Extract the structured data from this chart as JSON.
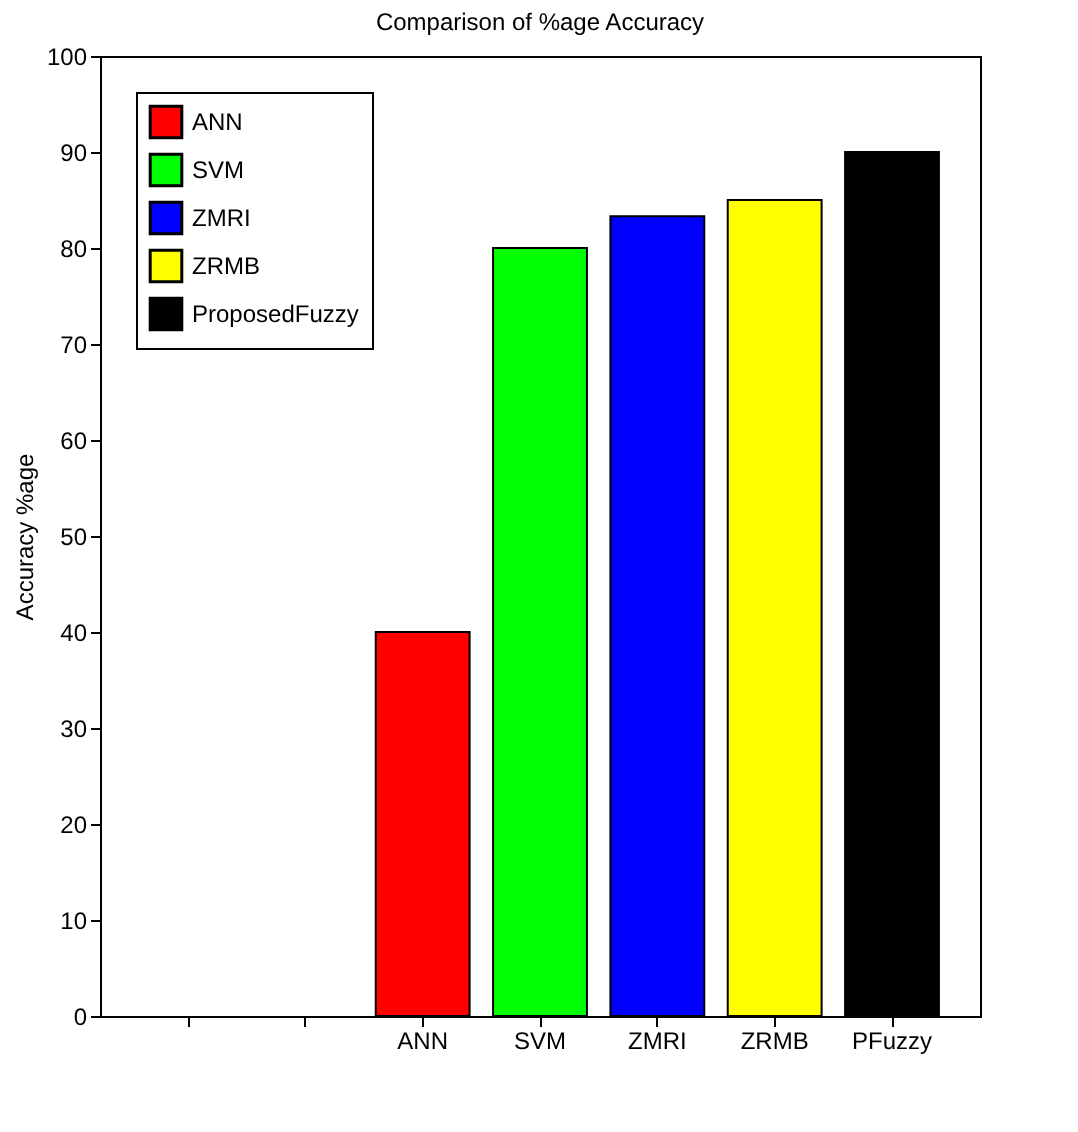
{
  "chart_data": {
    "type": "bar",
    "title": "Comparison of %age Accuracy",
    "ylabel": "Accuracy %age",
    "categories": [
      null,
      null,
      "ANN",
      "SVM",
      "ZMRI",
      "ZRMB",
      "PFuzzy"
    ],
    "series": [
      {
        "name": "ANN",
        "color": "#ff0000",
        "values": [
          null,
          null,
          40,
          null,
          null,
          null,
          null
        ]
      },
      {
        "name": "SVM",
        "color": "#00ff00",
        "values": [
          null,
          null,
          null,
          80,
          null,
          null,
          null
        ]
      },
      {
        "name": "ZMRI",
        "color": "#0000ff",
        "values": [
          null,
          null,
          null,
          null,
          83.3,
          null,
          null
        ]
      },
      {
        "name": "ZRMB",
        "color": "#ffff00",
        "values": [
          null,
          null,
          null,
          null,
          null,
          85,
          null
        ]
      },
      {
        "name": "ProposedFuzzy",
        "color": "#000000",
        "values": [
          null,
          null,
          null,
          null,
          null,
          null,
          90
        ]
      }
    ],
    "ylim": [
      0,
      100
    ],
    "yticks": [
      0,
      10,
      20,
      30,
      40,
      50,
      60,
      70,
      80,
      90,
      100
    ],
    "grid": false,
    "legend": "top left"
  }
}
